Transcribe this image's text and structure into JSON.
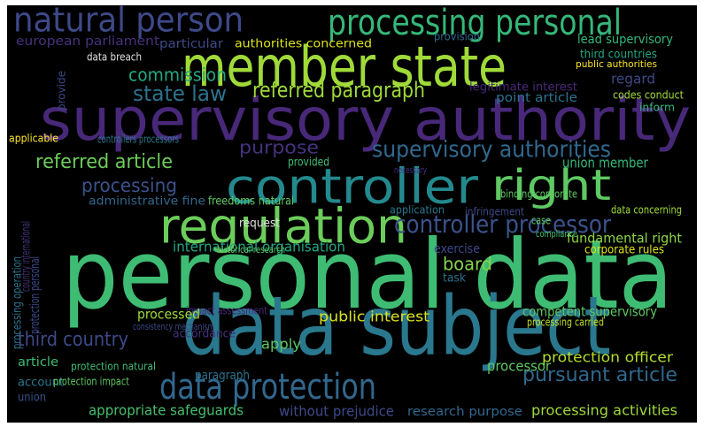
{
  "words": [
    "personal data",
    "data subject",
    "supervisory authority",
    "member state",
    "controller",
    "right",
    "regulation",
    "processing personal",
    "natural person",
    "data protection",
    "controller processor",
    "supervisory authorities",
    "referred paragraph",
    "state law",
    "commission",
    "referred article",
    "processing",
    "purpose",
    "third country",
    "pursuant article",
    "processing activities",
    "appropriate safeguards",
    "without prejudice",
    "research purpose",
    "public interest",
    "protection officer",
    "processor",
    "board",
    "union member",
    "fundamental right",
    "international organisation",
    "protection personal",
    "processing operation",
    "european parliament",
    "data breach",
    "particular",
    "authorities concerned",
    "lead supervisory",
    "third countries",
    "public authorities",
    "regard",
    "codes conduct",
    "legitimate interest",
    "point article",
    "inform",
    "provision",
    "administrative fine",
    "freedoms natural",
    "account",
    "union",
    "article",
    "accordance",
    "impact assessment",
    "consistency mechanism",
    "protection natural",
    "protection impact",
    "paragraph",
    "apply",
    "processed",
    "exercise",
    "corporate rules",
    "competent supervisory",
    "processing carried",
    "request",
    "provided",
    "necessary",
    "binding corporate",
    "data concerning",
    "infringement",
    "application",
    "case",
    "compliance",
    "applicable",
    "controllers processors",
    "task",
    "historical research",
    "country international",
    "provide"
  ]
}
